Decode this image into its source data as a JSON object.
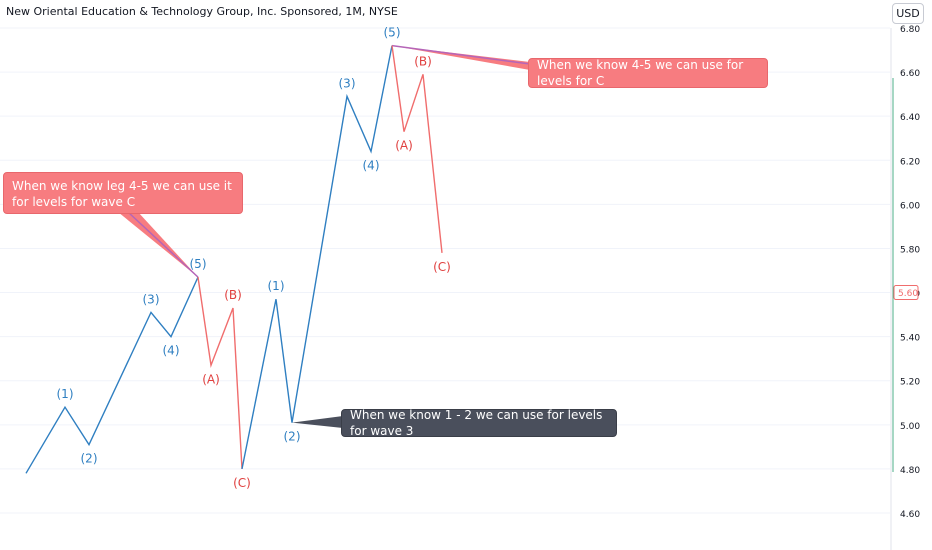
{
  "header": {
    "title": "New Oriental Education & Technology Group, Inc. Sponsored, 1M, NYSE",
    "currency_button": "USD"
  },
  "chart_data": {
    "type": "line",
    "ylim": [
      4.56,
      6.82
    ],
    "y_ticks": [
      "6.80",
      "6.60",
      "6.40",
      "6.20",
      "6.00",
      "5.80",
      "5.60",
      "5.40",
      "5.20",
      "5.00",
      "4.80",
      "4.60"
    ],
    "y_tick_values": [
      6.8,
      6.6,
      6.4,
      6.2,
      6.0,
      5.8,
      5.6,
      5.4,
      5.2,
      5.0,
      4.8,
      4.6
    ],
    "current_price_label": "5.60",
    "current_price": 5.6,
    "colors": {
      "impulse": "#2f7fc1",
      "corrective": "#f06d6d",
      "label_red": "#e0403f",
      "callout_pink": "#f77c80",
      "callout_dark": "#4a4f5c",
      "price_badge": "#f06d6d"
    },
    "series": [
      {
        "color": "#2f7fc1",
        "points": [
          [
            0,
            4.78
          ],
          [
            1,
            5.08
          ],
          [
            2,
            4.91
          ],
          [
            3,
            5.51
          ],
          [
            4,
            5.4
          ],
          [
            5,
            5.67
          ]
        ]
      },
      {
        "color": "#f06d6d",
        "points": [
          [
            5,
            5.67
          ],
          [
            6,
            5.27
          ],
          [
            7,
            5.53
          ],
          [
            8,
            4.8
          ]
        ]
      },
      {
        "color": "#2f7fc1",
        "points": [
          [
            8,
            4.8
          ],
          [
            9,
            5.57
          ],
          [
            10,
            5.01
          ],
          [
            11,
            6.49
          ],
          [
            12,
            6.24
          ],
          [
            13,
            6.72
          ]
        ]
      },
      {
        "color": "#f06d6d",
        "points": [
          [
            13,
            6.72
          ],
          [
            14,
            6.33
          ],
          [
            15,
            6.59
          ],
          [
            16,
            5.78
          ]
        ]
      }
    ],
    "wave_labels": [
      {
        "text": "(1)",
        "x": 1,
        "y": 5.08,
        "pos": "above",
        "color": "#2f7fc1"
      },
      {
        "text": "(2)",
        "x": 2,
        "y": 4.91,
        "pos": "below",
        "color": "#2f7fc1"
      },
      {
        "text": "(3)",
        "x": 3,
        "y": 5.51,
        "pos": "above",
        "color": "#2f7fc1"
      },
      {
        "text": "(4)",
        "x": 4,
        "y": 5.4,
        "pos": "below",
        "color": "#2f7fc1"
      },
      {
        "text": "(5)",
        "x": 5,
        "y": 5.67,
        "pos": "above",
        "color": "#2f7fc1"
      },
      {
        "text": "(A)",
        "x": 6,
        "y": 5.27,
        "pos": "below",
        "color": "#e0403f"
      },
      {
        "text": "(B)",
        "x": 7,
        "y": 5.53,
        "pos": "above",
        "color": "#e0403f"
      },
      {
        "text": "(C)",
        "x": 8,
        "y": 4.8,
        "pos": "below",
        "color": "#e0403f"
      },
      {
        "text": "(1)",
        "x": 9,
        "y": 5.57,
        "pos": "above",
        "color": "#2f7fc1"
      },
      {
        "text": "(2)",
        "x": 10,
        "y": 5.01,
        "pos": "below",
        "color": "#2f7fc1"
      },
      {
        "text": "(3)",
        "x": 11,
        "y": 6.49,
        "pos": "above",
        "color": "#2f7fc1"
      },
      {
        "text": "(4)",
        "x": 12,
        "y": 6.24,
        "pos": "below",
        "color": "#2f7fc1"
      },
      {
        "text": "(5)",
        "x": 13,
        "y": 6.72,
        "pos": "above",
        "color": "#2f7fc1"
      },
      {
        "text": "(A)",
        "x": 14,
        "y": 6.33,
        "pos": "below",
        "color": "#e0403f"
      },
      {
        "text": "(B)",
        "x": 15,
        "y": 6.59,
        "pos": "above",
        "color": "#e0403f"
      },
      {
        "text": "(C)",
        "x": 16,
        "y": 5.78,
        "pos": "below",
        "color": "#e0403f"
      }
    ],
    "annotations": [
      {
        "text": "When we know 4-5 we can use for levels for C",
        "style": "pink",
        "anchor_x": 13,
        "anchor_y": 6.72
      },
      {
        "text": "When we know leg 4-5 we can use it for levels for wave C",
        "style": "pink",
        "anchor_x": 5,
        "anchor_y": 5.67
      },
      {
        "text": "When we know 1 - 2 we can use for levels for wave 3",
        "style": "dark",
        "anchor_x": 10,
        "anchor_y": 5.01
      }
    ]
  }
}
